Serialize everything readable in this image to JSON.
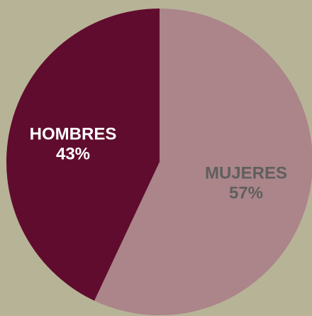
{
  "page": {
    "background_color": "#b7b397"
  },
  "chart_data": {
    "type": "pie",
    "title": "",
    "series": [
      {
        "name": "MUJERES",
        "value": 57,
        "percent_label": "57%",
        "color": "#ab8589",
        "label_color": "#5f5f5f"
      },
      {
        "name": "HOMBRES",
        "value": 43,
        "percent_label": "43%",
        "color": "#600c2e",
        "label_color": "#ffffff"
      }
    ],
    "start_angle": "top",
    "direction": "clockwise"
  }
}
